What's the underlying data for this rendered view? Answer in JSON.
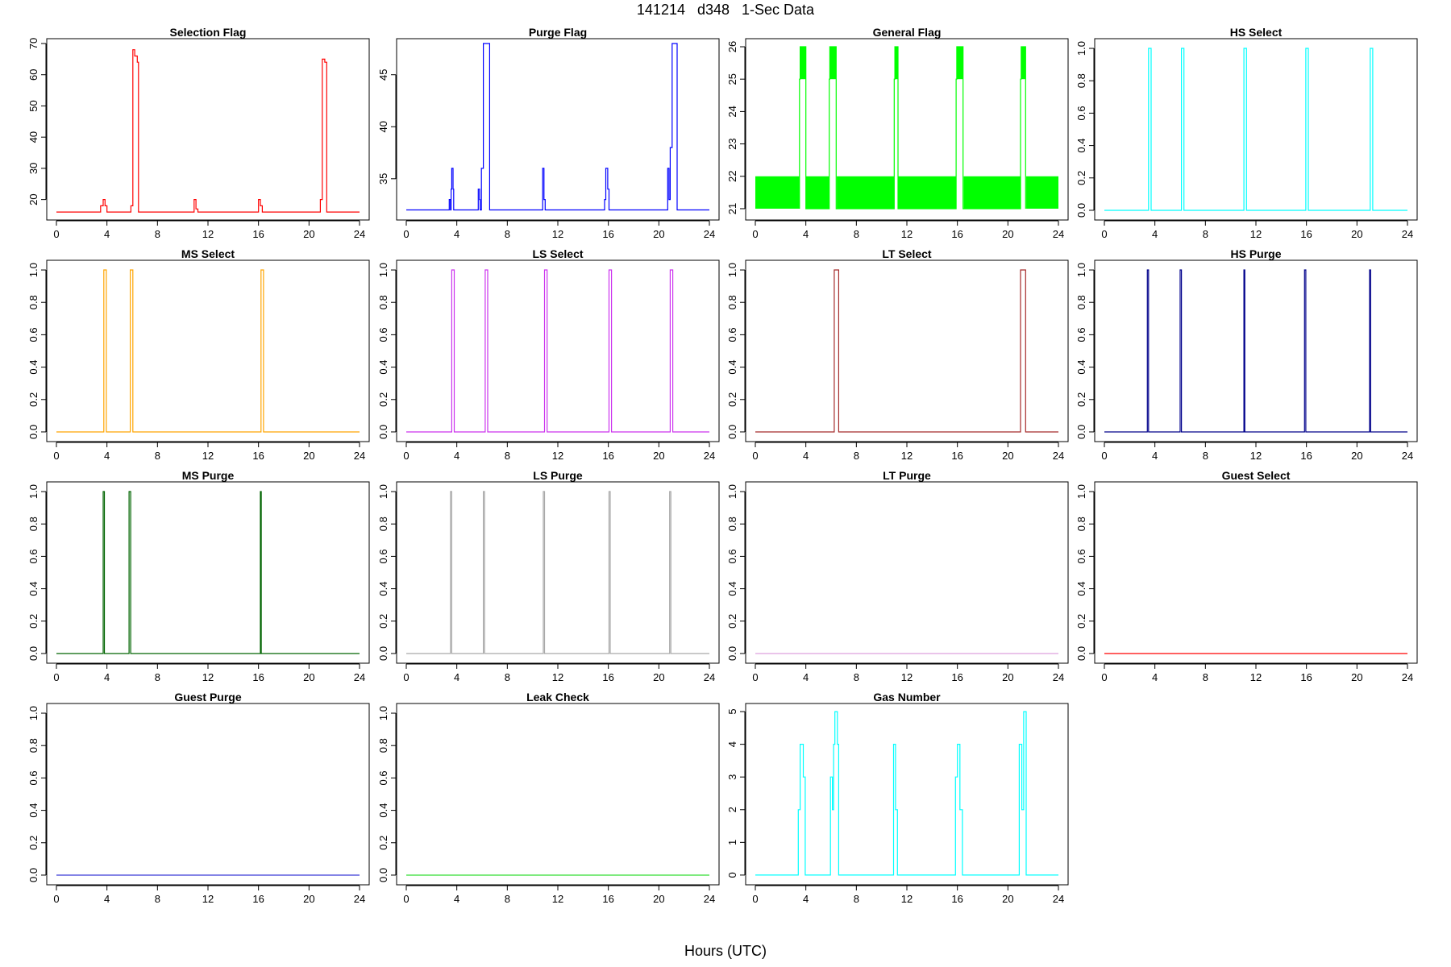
{
  "figure": {
    "title": "141214   d348   1-Sec Data",
    "xlabel": "Hours (UTC)"
  },
  "chart_data": [
    {
      "type": "line",
      "title": "Selection Flag",
      "color": "#ff0000",
      "xlim": [
        0,
        24
      ],
      "ylim": [
        15,
        70
      ],
      "xticks": [
        "0",
        "4",
        "8",
        "12",
        "16",
        "20",
        "24"
      ],
      "yticks": [
        20,
        30,
        40,
        50,
        60,
        70
      ],
      "series": [
        {
          "x": [
            0,
            3.5,
            3.5,
            3.7,
            3.7,
            3.85,
            3.85,
            4.0,
            4.0,
            5.9,
            5.9,
            6.05,
            6.05,
            6.2,
            6.2,
            6.4,
            6.4,
            6.5,
            6.5,
            10.9,
            10.9,
            11.05,
            11.05,
            11.2,
            11.2,
            16.0,
            16.0,
            16.15,
            16.15,
            16.3,
            16.3,
            20.9,
            20.9,
            21.05,
            21.05,
            21.25,
            21.25,
            21.4,
            21.4,
            24
          ],
          "y": [
            16,
            16,
            18,
            18,
            20,
            20,
            18,
            18,
            16,
            16,
            18,
            18,
            68,
            68,
            66,
            66,
            64,
            64,
            16,
            16,
            20,
            20,
            17,
            17,
            16,
            16,
            20,
            20,
            18,
            18,
            16,
            16,
            20,
            20,
            65,
            65,
            64,
            64,
            16,
            16
          ]
        }
      ]
    },
    {
      "type": "line",
      "title": "Purge Flag",
      "color": "#0000ff",
      "xlim": [
        0,
        24
      ],
      "ylim": [
        31.5,
        48
      ],
      "xticks": [
        "0",
        "4",
        "8",
        "12",
        "16",
        "20",
        "24"
      ],
      "yticks": [
        35,
        40,
        45
      ],
      "series": [
        {
          "x": [
            0,
            3.4,
            3.4,
            3.5,
            3.5,
            3.55,
            3.55,
            3.6,
            3.6,
            3.7,
            3.7,
            3.75,
            3.75,
            5.7,
            5.7,
            5.8,
            5.8,
            5.85,
            5.85,
            5.95,
            5.95,
            6.1,
            6.1,
            6.2,
            6.2,
            6.6,
            6.6,
            10.8,
            10.8,
            10.9,
            10.9,
            11.0,
            11.0,
            11.1,
            11.1,
            15.7,
            15.7,
            15.8,
            15.8,
            15.95,
            15.95,
            16.05,
            16.05,
            16.15,
            16.15,
            20.7,
            20.7,
            20.8,
            20.8,
            20.9,
            20.9,
            21.05,
            21.05,
            21.45,
            21.45,
            24
          ],
          "y": [
            32,
            32,
            33,
            33,
            32,
            32,
            34,
            34,
            36,
            36,
            34,
            34,
            32,
            32,
            34,
            34,
            33,
            33,
            32,
            32,
            36,
            36,
            48,
            48,
            48,
            48,
            32,
            32,
            36,
            36,
            33,
            33,
            32,
            32,
            32,
            32,
            33,
            33,
            36,
            36,
            34,
            34,
            32,
            32,
            32,
            32,
            36,
            36,
            33,
            33,
            38,
            38,
            48,
            48,
            32,
            32
          ]
        }
      ]
    },
    {
      "type": "line",
      "title": "General Flag",
      "color": "#00ff00",
      "xlim": [
        0,
        24
      ],
      "ylim": [
        20.8,
        26.1
      ],
      "xticks": [
        "0",
        "4",
        "8",
        "12",
        "16",
        "20",
        "24"
      ],
      "yticks": [
        21,
        22,
        23,
        24,
        25,
        26
      ],
      "fill_band": {
        "y0": 21,
        "y1": 22,
        "gaps": [
          [
            3.5,
            4.0
          ],
          [
            5.85,
            6.45
          ],
          [
            11.0,
            11.3
          ],
          [
            15.9,
            16.5
          ],
          [
            21.0,
            21.45
          ]
        ]
      },
      "series": [
        {
          "x": [
            3.5,
            3.5,
            3.55,
            3.55,
            4.0,
            4.0,
            5.85,
            5.85,
            5.9,
            5.9,
            6.4,
            6.4,
            11.0,
            11.0,
            11.05,
            11.05,
            11.3,
            11.3,
            15.9,
            15.9,
            15.95,
            15.95,
            16.45,
            16.45,
            21.0,
            21.0,
            21.05,
            21.05,
            21.4,
            21.4
          ],
          "y": [
            21,
            25,
            25,
            26,
            26,
            21,
            21,
            25,
            25,
            26,
            26,
            21,
            21,
            25,
            25,
            26,
            26,
            21,
            21,
            25,
            25,
            26,
            26,
            21,
            21,
            25,
            25,
            26,
            26,
            21
          ]
        }
      ],
      "fill_blocks": [
        [
          3.55,
          4.0,
          25,
          26
        ],
        [
          5.9,
          6.4,
          25,
          26
        ],
        [
          11.05,
          11.3,
          25,
          26
        ],
        [
          15.95,
          16.45,
          25,
          26
        ],
        [
          21.05,
          21.4,
          25,
          26
        ]
      ]
    },
    {
      "type": "line",
      "title": "HS Select",
      "color": "#00ffff",
      "xlim": [
        0,
        24
      ],
      "ylim": [
        -0.03,
        1.03
      ],
      "xticks": [
        "0",
        "4",
        "8",
        "12",
        "16",
        "20",
        "24"
      ],
      "yticks": [
        "0.0",
        "0.2",
        "0.4",
        "0.6",
        "0.8",
        "1.0"
      ],
      "pulses": [
        [
          3.5,
          3.7
        ],
        [
          6.1,
          6.3
        ],
        [
          11.05,
          11.25
        ],
        [
          15.95,
          16.15
        ],
        [
          21.05,
          21.25
        ]
      ]
    },
    {
      "type": "line",
      "title": "MS Select",
      "color": "#ffa500",
      "xlim": [
        0,
        24
      ],
      "ylim": [
        -0.03,
        1.03
      ],
      "xticks": [
        "0",
        "4",
        "8",
        "12",
        "16",
        "20",
        "24"
      ],
      "yticks": [
        "0.0",
        "0.2",
        "0.4",
        "0.6",
        "0.8",
        "1.0"
      ],
      "pulses": [
        [
          3.75,
          3.95
        ],
        [
          5.85,
          6.05
        ],
        [
          16.2,
          16.4
        ]
      ]
    },
    {
      "type": "line",
      "title": "LS Select",
      "color": "#cc33ee",
      "xlim": [
        0,
        24
      ],
      "ylim": [
        -0.03,
        1.03
      ],
      "xticks": [
        "0",
        "4",
        "8",
        "12",
        "16",
        "20",
        "24"
      ],
      "yticks": [
        "0.0",
        "0.2",
        "0.4",
        "0.6",
        "0.8",
        "1.0"
      ],
      "pulses": [
        [
          3.6,
          3.8
        ],
        [
          6.25,
          6.45
        ],
        [
          10.95,
          11.15
        ],
        [
          16.05,
          16.25
        ],
        [
          20.9,
          21.1
        ]
      ]
    },
    {
      "type": "line",
      "title": "LT Select",
      "color": "#a52a2a",
      "xlim": [
        0,
        24
      ],
      "ylim": [
        -0.03,
        1.03
      ],
      "xticks": [
        "0",
        "4",
        "8",
        "12",
        "16",
        "20",
        "24"
      ],
      "yticks": [
        "0.0",
        "0.2",
        "0.4",
        "0.6",
        "0.8",
        "1.0"
      ],
      "pulses": [
        [
          6.25,
          6.6
        ],
        [
          21.0,
          21.4
        ]
      ]
    },
    {
      "type": "line",
      "title": "HS Purge",
      "color": "#00008b",
      "xlim": [
        0,
        24
      ],
      "ylim": [
        -0.03,
        1.03
      ],
      "xticks": [
        "0",
        "4",
        "8",
        "12",
        "16",
        "20",
        "24"
      ],
      "yticks": [
        "0.0",
        "0.2",
        "0.4",
        "0.6",
        "0.8",
        "1.0"
      ],
      "pulses": [
        [
          3.4,
          3.5
        ],
        [
          6.0,
          6.1
        ],
        [
          11.05,
          11.12
        ],
        [
          15.85,
          15.95
        ],
        [
          21.0,
          21.08
        ]
      ]
    },
    {
      "type": "line",
      "title": "MS Purge",
      "color": "#006400",
      "xlim": [
        0,
        24
      ],
      "ylim": [
        -0.03,
        1.03
      ],
      "xticks": [
        "0",
        "4",
        "8",
        "12",
        "16",
        "20",
        "24"
      ],
      "yticks": [
        "0.0",
        "0.2",
        "0.4",
        "0.6",
        "0.8",
        "1.0"
      ],
      "pulses": [
        [
          3.7,
          3.8
        ],
        [
          5.75,
          5.88
        ],
        [
          16.15,
          16.22
        ]
      ]
    },
    {
      "type": "line",
      "title": "LS Purge",
      "color": "#a9a9a9",
      "xlim": [
        0,
        24
      ],
      "ylim": [
        -0.03,
        1.03
      ],
      "xticks": [
        "0",
        "4",
        "8",
        "12",
        "16",
        "20",
        "24"
      ],
      "yticks": [
        "0.0",
        "0.2",
        "0.4",
        "0.6",
        "0.8",
        "1.0"
      ],
      "pulses": [
        [
          3.5,
          3.6
        ],
        [
          6.1,
          6.2
        ],
        [
          10.85,
          10.95
        ],
        [
          16.05,
          16.15
        ],
        [
          20.85,
          20.95
        ]
      ]
    },
    {
      "type": "line",
      "title": "LT Purge",
      "color": "#dda0dd",
      "xlim": [
        0,
        24
      ],
      "ylim": [
        -0.03,
        1.03
      ],
      "xticks": [
        "0",
        "4",
        "8",
        "12",
        "16",
        "20",
        "24"
      ],
      "yticks": [
        "0.0",
        "0.2",
        "0.4",
        "0.6",
        "0.8",
        "1.0"
      ],
      "pulses": []
    },
    {
      "type": "line",
      "title": "Guest Select",
      "color": "#ff0000",
      "xlim": [
        0,
        24
      ],
      "ylim": [
        -0.03,
        1.03
      ],
      "xticks": [
        "0",
        "4",
        "8",
        "12",
        "16",
        "20",
        "24"
      ],
      "yticks": [
        "0.0",
        "0.2",
        "0.4",
        "0.6",
        "0.8",
        "1.0"
      ],
      "pulses": []
    },
    {
      "type": "line",
      "title": "Guest Purge",
      "color": "#3b3bd6",
      "xlim": [
        0,
        24
      ],
      "ylim": [
        -0.03,
        1.03
      ],
      "xticks": [
        "0",
        "4",
        "8",
        "12",
        "16",
        "20",
        "24"
      ],
      "yticks": [
        "0.0",
        "0.2",
        "0.4",
        "0.6",
        "0.8",
        "1.0"
      ],
      "pulses": []
    },
    {
      "type": "line",
      "title": "Leak Check",
      "color": "#33dd33",
      "xlim": [
        0,
        24
      ],
      "ylim": [
        -0.03,
        1.03
      ],
      "xticks": [
        "0",
        "4",
        "8",
        "12",
        "16",
        "20",
        "24"
      ],
      "yticks": [
        "0.0",
        "0.2",
        "0.4",
        "0.6",
        "0.8",
        "1.0"
      ],
      "pulses": []
    },
    {
      "type": "line",
      "title": "Gas Number",
      "color": "#00ffff",
      "xlim": [
        0,
        24
      ],
      "ylim": [
        -0.15,
        5.1
      ],
      "xticks": [
        "0",
        "4",
        "8",
        "12",
        "16",
        "20",
        "24"
      ],
      "yticks": [
        0,
        1,
        2,
        3,
        4,
        5
      ],
      "series": [
        {
          "x": [
            0,
            3.4,
            3.4,
            3.55,
            3.55,
            3.8,
            3.8,
            3.95,
            3.95,
            5.95,
            5.95,
            6.1,
            6.1,
            6.2,
            6.2,
            6.3,
            6.3,
            6.5,
            6.5,
            6.6,
            6.6,
            10.95,
            10.95,
            11.1,
            11.1,
            11.25,
            11.25,
            15.85,
            15.85,
            16.0,
            16.0,
            16.2,
            16.2,
            16.4,
            16.4,
            20.9,
            20.9,
            21.1,
            21.1,
            21.25,
            21.25,
            21.45,
            21.45,
            24
          ],
          "y": [
            0,
            0,
            2,
            2,
            4,
            4,
            3,
            3,
            0,
            0,
            3,
            3,
            2,
            2,
            4,
            4,
            5,
            5,
            4,
            4,
            0,
            0,
            4,
            4,
            2,
            2,
            0,
            0,
            3,
            3,
            4,
            4,
            2,
            2,
            0,
            0,
            4,
            4,
            2,
            2,
            5,
            5,
            0,
            0
          ]
        }
      ]
    }
  ]
}
